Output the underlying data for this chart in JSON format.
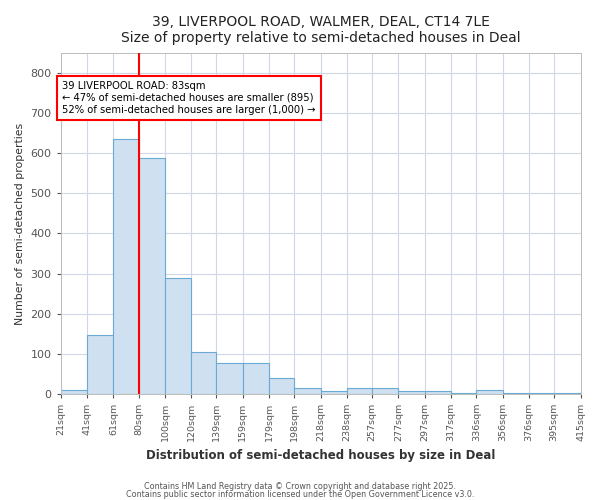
{
  "title": "39, LIVERPOOL ROAD, WALMER, DEAL, CT14 7LE",
  "subtitle": "Size of property relative to semi-detached houses in Deal",
  "xlabel": "Distribution of semi-detached houses by size in Deal",
  "ylabel": "Number of semi-detached properties",
  "bar_color": "#cfe0f0",
  "bar_edge_color": "#6aaad4",
  "background_color": "#ffffff",
  "grid_color": "#d0d8e8",
  "redline_x": 80,
  "annotation_title": "39 LIVERPOOL ROAD: 83sqm",
  "annotation_line1": "← 47% of semi-detached houses are smaller (895)",
  "annotation_line2": "52% of semi-detached houses are larger (1,000) →",
  "bin_edges": [
    21,
    41,
    61,
    80,
    100,
    120,
    139,
    159,
    179,
    198,
    218,
    238,
    257,
    277,
    297,
    317,
    336,
    356,
    376,
    395,
    415
  ],
  "bin_labels": [
    "21sqm",
    "41sqm",
    "61sqm",
    "80sqm",
    "100sqm",
    "120sqm",
    "139sqm",
    "159sqm",
    "179sqm",
    "198sqm",
    "218sqm",
    "238sqm",
    "257sqm",
    "277sqm",
    "297sqm",
    "317sqm",
    "336sqm",
    "356sqm",
    "376sqm",
    "395sqm",
    "415sqm"
  ],
  "bar_heights": [
    10,
    147,
    637,
    588,
    290,
    105,
    77,
    77,
    38,
    14,
    7,
    13,
    13,
    7,
    7,
    1,
    8,
    1,
    1,
    1,
    0
  ],
  "ylim": [
    0,
    850
  ],
  "yticks": [
    0,
    100,
    200,
    300,
    400,
    500,
    600,
    700,
    800
  ],
  "footer1": "Contains HM Land Registry data © Crown copyright and database right 2025.",
  "footer2": "Contains public sector information licensed under the Open Government Licence v3.0."
}
